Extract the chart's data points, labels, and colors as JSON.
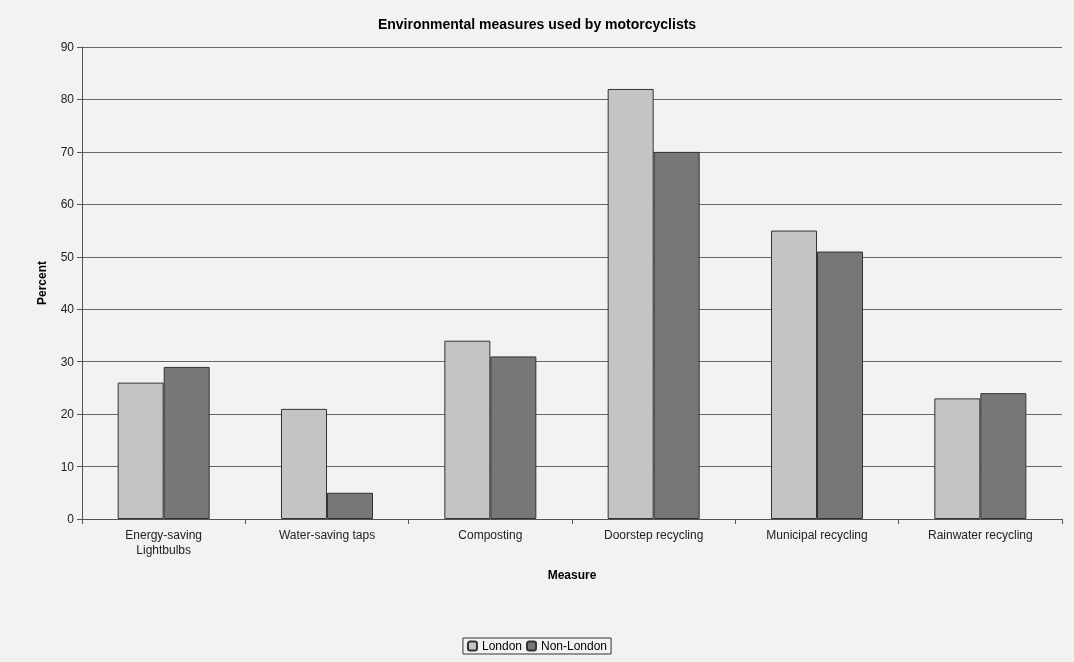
{
  "chart_data": {
    "type": "bar",
    "title": "Environmental measures used by motorcyclists",
    "xlabel": "Measure",
    "ylabel": "Percent",
    "categories": [
      "Energy-saving\nLightbulbs",
      "Water-saving taps",
      "Composting",
      "Doorstep recycling",
      "Municipal recycling",
      "Rainwater recycling"
    ],
    "series": [
      {
        "name": "London",
        "color": "#c4c4c4",
        "values": [
          26,
          21,
          34,
          82,
          55,
          23
        ]
      },
      {
        "name": "Non-London",
        "color": "#777777",
        "values": [
          29,
          5,
          31,
          70,
          51,
          24
        ]
      }
    ],
    "ylim": [
      0,
      90
    ],
    "yticks": [
      0,
      10,
      20,
      30,
      40,
      50,
      60,
      70,
      80,
      90
    ],
    "grid": "y",
    "legend": "bottom"
  }
}
